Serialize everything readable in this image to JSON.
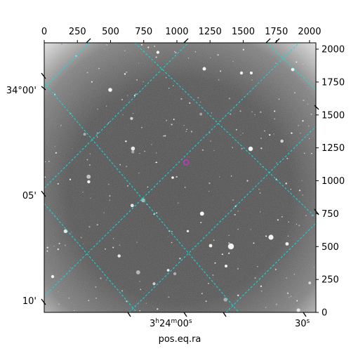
{
  "figure": {
    "type": "astronomical-image",
    "xlabel": "pos.eq.ra",
    "pixel_axes": {
      "x_range": [
        0,
        2048
      ],
      "y_range": [
        0,
        2048
      ],
      "top_ticks": [
        "0",
        "250",
        "500",
        "750",
        "1000",
        "1250",
        "1500",
        "1750",
        "2000"
      ],
      "right_ticks": [
        "0",
        "250",
        "500",
        "750",
        "1000",
        "1250",
        "1500",
        "1750",
        "2000"
      ]
    },
    "world_axes": {
      "ra_ticks": [
        {
          "label_h": "3",
          "label_m": "24",
          "label_s": "00",
          "sup_h": "h",
          "sup_m": "m",
          "sup_s": "s"
        },
        {
          "label_s": "30",
          "sup_s": "s"
        }
      ],
      "dec_ticks": [
        "34°00'",
        "05'",
        "10'"
      ]
    },
    "grid_color": "#00e5e5",
    "marker": {
      "shape": "circle",
      "color": "#cc33cc",
      "pixel": [
        1070,
        1140
      ]
    },
    "image": {
      "colormap": "gray",
      "vignetting": "strong corners"
    }
  }
}
